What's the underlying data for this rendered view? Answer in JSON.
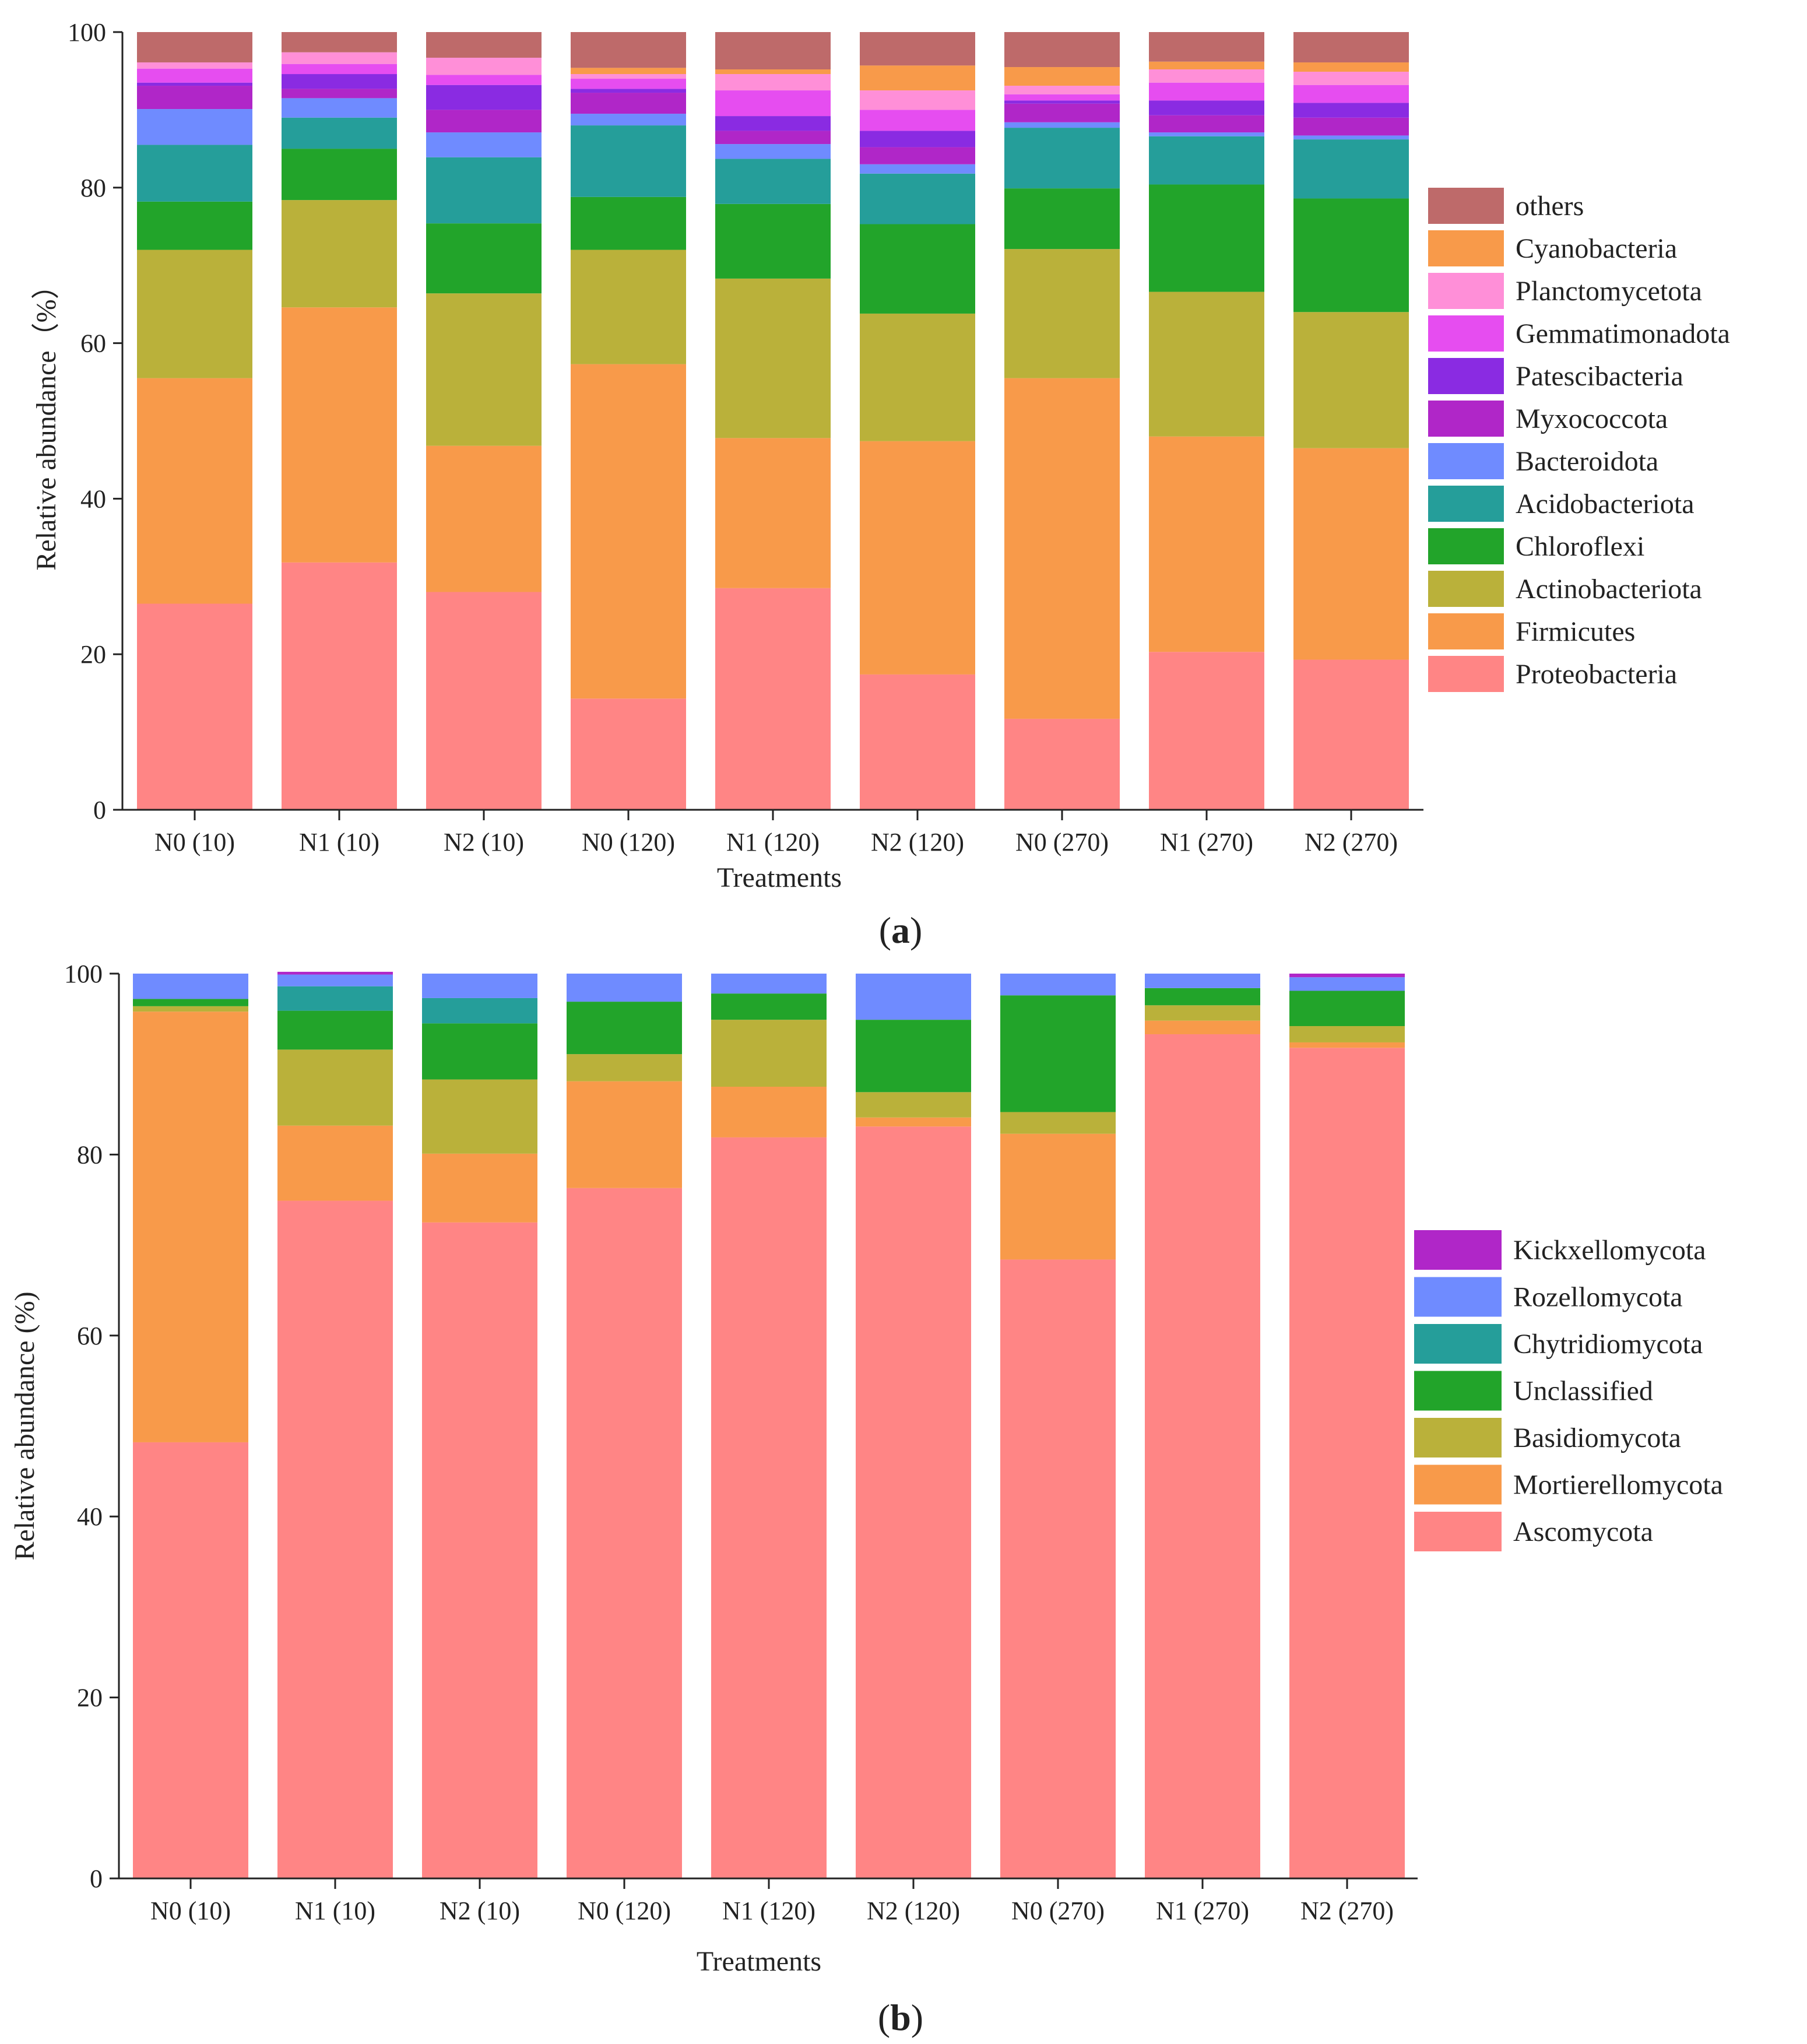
{
  "chart_data": [
    {
      "type": "bar",
      "stacked": true,
      "panel_label": "a",
      "title": "",
      "xlabel": "Treatments",
      "ylabel": "Relative abundance（%）",
      "ylim": [
        0,
        100
      ],
      "yticks": [
        0,
        20,
        40,
        60,
        80,
        100
      ],
      "grid": false,
      "legend_position": "right",
      "categories": [
        "N0 (10)",
        "N1 (10)",
        "N2 (10)",
        "N0 (120)",
        "N1 (120)",
        "N2 (120)",
        "N0 (270)",
        "N1 (270)",
        "N2 (270)"
      ],
      "series": [
        {
          "name": "Proteobacteria",
          "color": "#FF8585",
          "values": [
            26.5,
            31.8,
            28.0,
            14.3,
            28.5,
            17.4,
            11.7,
            20.3,
            19.3
          ]
        },
        {
          "name": "Firmicutes",
          "color": "#F89A4A",
          "values": [
            29.0,
            32.8,
            18.8,
            43.0,
            19.3,
            30.0,
            43.8,
            27.7,
            27.2
          ]
        },
        {
          "name": "Actinobacteriota",
          "color": "#BAB13A",
          "values": [
            16.5,
            13.8,
            19.6,
            14.7,
            20.5,
            16.4,
            16.6,
            18.6,
            17.5
          ]
        },
        {
          "name": "Chloroflexi",
          "color": "#22A42A",
          "values": [
            6.2,
            6.6,
            9.0,
            6.8,
            9.6,
            11.5,
            7.8,
            13.8,
            14.6
          ]
        },
        {
          "name": "Acidobacteriota",
          "color": "#259E9A",
          "values": [
            7.3,
            4.0,
            8.5,
            9.2,
            5.8,
            6.5,
            7.8,
            6.2,
            7.6
          ]
        },
        {
          "name": "Bacteroidota",
          "color": "#6F8BFF",
          "values": [
            4.6,
            2.5,
            3.2,
            1.5,
            1.9,
            1.2,
            0.7,
            0.5,
            0.5
          ]
        },
        {
          "name": "Myxococcota",
          "color": "#B026C8",
          "values": [
            3.0,
            1.2,
            2.9,
            2.7,
            1.7,
            2.2,
            2.4,
            2.2,
            2.3
          ]
        },
        {
          "name": "Patescibacteria",
          "color": "#8A2BE2",
          "values": [
            0.4,
            1.9,
            3.2,
            0.5,
            1.9,
            2.1,
            0.4,
            1.9,
            1.9
          ]
        },
        {
          "name": "Gemmatimonadota",
          "color": "#E64DF0",
          "values": [
            1.8,
            1.3,
            1.3,
            1.3,
            3.3,
            2.7,
            0.8,
            2.3,
            2.3
          ]
        },
        {
          "name": "Planctomycetota",
          "color": "#FF8FD8",
          "values": [
            0.8,
            1.5,
            2.2,
            0.6,
            2.1,
            2.5,
            1.1,
            1.7,
            1.7
          ]
        },
        {
          "name": "Cyanobacteria",
          "color": "#F89A4A",
          "values": [
            0.0,
            0.0,
            0.0,
            0.8,
            0.6,
            3.2,
            2.4,
            1.0,
            1.2
          ]
        },
        {
          "name": "others",
          "color": "#BE6A6A",
          "values": [
            3.9,
            2.6,
            3.3,
            4.6,
            4.8,
            4.3,
            4.5,
            3.8,
            3.9
          ]
        }
      ]
    },
    {
      "type": "bar",
      "stacked": true,
      "panel_label": "b",
      "title": "",
      "xlabel": "Treatments",
      "ylabel": "Relative abundance (%)",
      "ylim": [
        0,
        100
      ],
      "yticks": [
        0,
        20,
        40,
        60,
        80,
        100
      ],
      "grid": false,
      "legend_position": "right",
      "categories": [
        "N0 (10)",
        "N1 (10)",
        "N2 (10)",
        "N0 (120)",
        "N1 (120)",
        "N2 (120)",
        "N0 (270)",
        "N1 (270)",
        "N2 (270)"
      ],
      "series": [
        {
          "name": "Ascomycota",
          "color": "#FF8585",
          "values": [
            48.2,
            74.9,
            72.5,
            76.3,
            81.9,
            83.1,
            68.4,
            93.3,
            91.8
          ]
        },
        {
          "name": "Mortierellomycota",
          "color": "#F89A4A",
          "values": [
            47.6,
            8.3,
            7.6,
            11.8,
            5.6,
            1.0,
            13.9,
            1.5,
            0.6
          ]
        },
        {
          "name": "Basidiomycota",
          "color": "#BAB13A",
          "values": [
            0.6,
            8.4,
            8.2,
            3.0,
            7.4,
            2.8,
            2.4,
            1.7,
            1.8
          ]
        },
        {
          "name": "Unclassified",
          "color": "#22A42A",
          "values": [
            0.8,
            4.3,
            6.2,
            5.8,
            2.9,
            8.0,
            12.9,
            1.9,
            3.9
          ]
        },
        {
          "name": "Chytridiomycota",
          "color": "#259E9A",
          "values": [
            0.0,
            2.7,
            2.8,
            0.0,
            0.0,
            0.0,
            0.0,
            0.0,
            0.0
          ]
        },
        {
          "name": "Rozellomycota",
          "color": "#6F8BFF",
          "values": [
            2.8,
            1.3,
            2.7,
            3.1,
            2.2,
            5.1,
            2.4,
            1.6,
            1.5
          ]
        },
        {
          "name": "Kickxellomycota",
          "color": "#B026C8",
          "values": [
            0.0,
            0.3,
            0.0,
            0.0,
            0.0,
            0.0,
            0.0,
            0.0,
            0.4
          ]
        }
      ]
    }
  ]
}
